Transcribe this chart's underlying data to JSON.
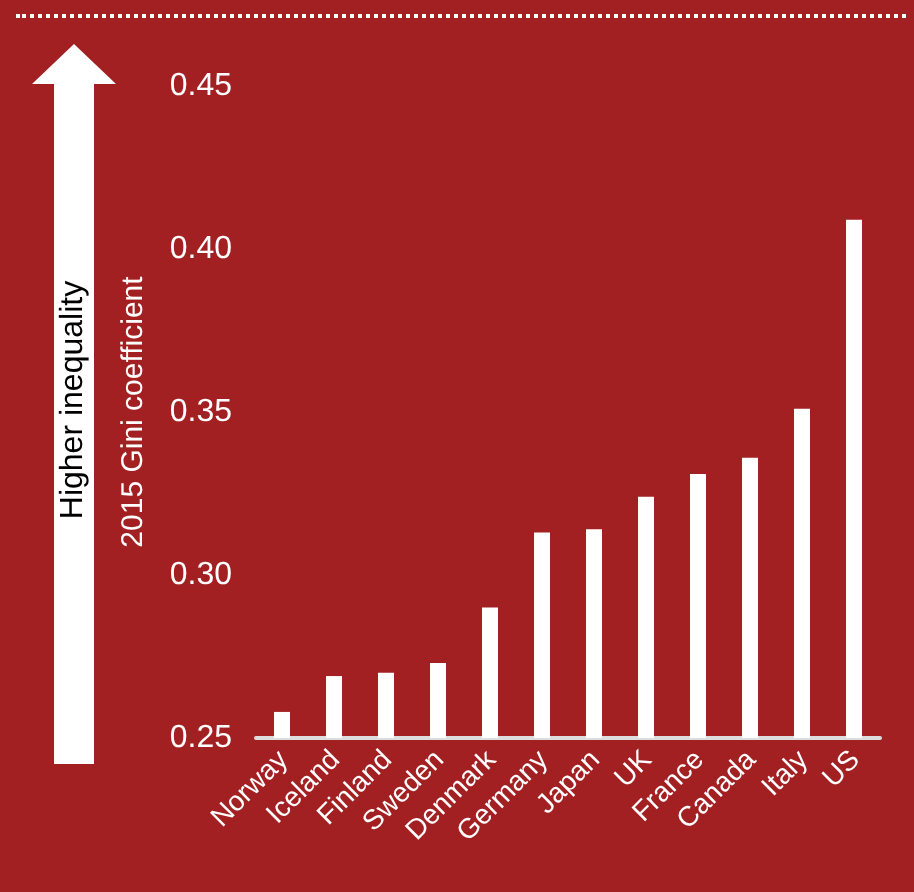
{
  "chart_data": {
    "type": "bar",
    "ylabel": "2015 Gini coefficient",
    "annotations": [
      "Higher inequality"
    ],
    "categories": [
      "Norway",
      "Iceland",
      "Finland",
      "Sweden",
      "Denmark",
      "Germany",
      "Japan",
      "UK",
      "France",
      "Canada",
      "Italy",
      "US"
    ],
    "values": [
      0.258,
      0.269,
      0.27,
      0.273,
      0.29,
      0.313,
      0.314,
      0.324,
      0.331,
      0.336,
      0.351,
      0.409
    ],
    "color": "#ffffff",
    "ylim": [
      0.25,
      0.45
    ],
    "yticks": [
      {
        "value": 0.25,
        "label": "0.25"
      },
      {
        "value": 0.3,
        "label": "0.30"
      },
      {
        "value": 0.35,
        "label": "0.35"
      },
      {
        "value": 0.4,
        "label": "0.40"
      },
      {
        "value": 0.45,
        "label": "0.45"
      }
    ],
    "grid": false
  }
}
